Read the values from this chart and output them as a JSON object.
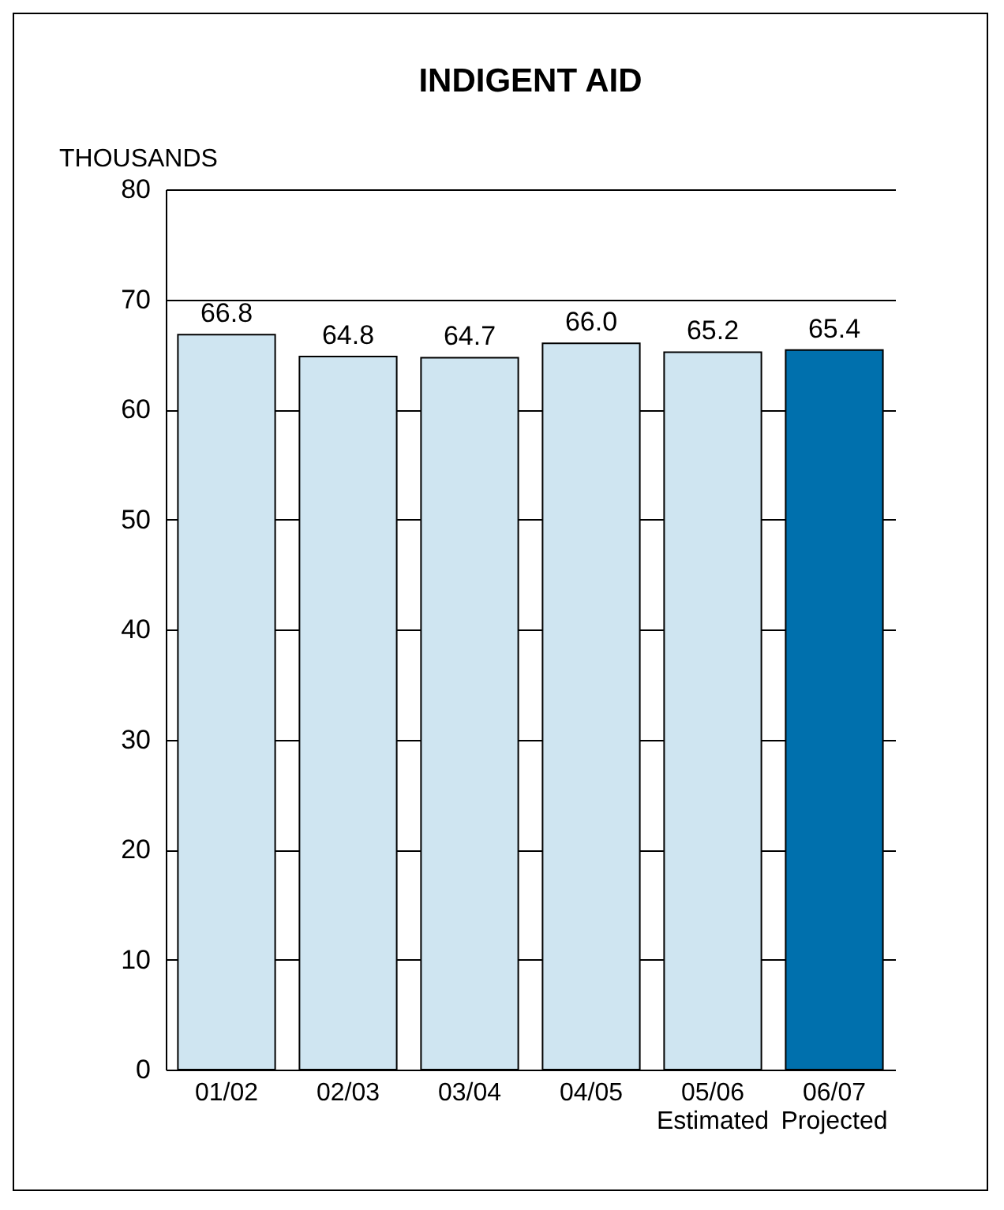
{
  "chart_data": {
    "type": "bar",
    "title": "INDIGENT AID",
    "ylabel": "THOUSANDS",
    "categories": [
      "01/02",
      "02/03",
      "03/04",
      "04/05",
      "05/06\nEstimated",
      "06/07\nProjected"
    ],
    "values": [
      66.8,
      64.8,
      64.7,
      66.0,
      65.2,
      65.4
    ],
    "colors": [
      "#cfe5f1",
      "#cfe5f1",
      "#cfe5f1",
      "#cfe5f1",
      "#cfe5f1",
      "#0070ad"
    ],
    "value_labels": [
      "66.8",
      "64.8",
      "64.7",
      "66.0",
      "65.2",
      "65.4"
    ],
    "ylim": [
      0,
      80
    ],
    "yticks": [
      0,
      10,
      20,
      30,
      40,
      50,
      60,
      70,
      80
    ],
    "grid": "y"
  }
}
